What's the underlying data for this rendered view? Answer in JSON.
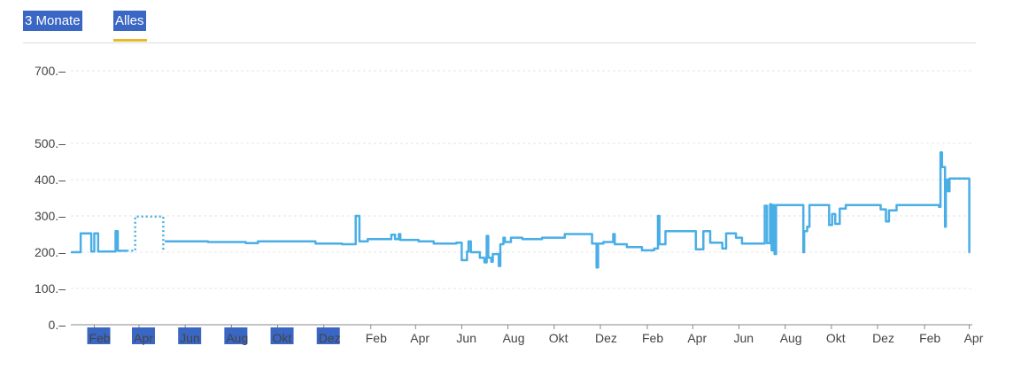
{
  "tabs": {
    "items": [
      {
        "label": "3 Monate",
        "active": false
      },
      {
        "label": "Alles",
        "active": true
      }
    ],
    "accent_color": "#e9b92a",
    "highlight_color": "#3a66c4"
  },
  "chart_data": {
    "type": "line",
    "line_color": "#4aaee6",
    "grid": true,
    "ylim": [
      0,
      700
    ],
    "yticks": [
      0,
      100,
      200,
      300,
      400,
      500,
      700
    ],
    "ytick_labels": [
      "0.–",
      "100.–",
      "200.–",
      "300.–",
      "400.–",
      "500.–",
      "700.–"
    ],
    "xlim": [
      "2022-01-01",
      "2025-04-05"
    ],
    "xticks": [
      {
        "date": "2022-02-01",
        "label": "Feb",
        "highlight": true
      },
      {
        "date": "2022-04-01",
        "label": "Apr",
        "highlight": true
      },
      {
        "date": "2022-06-01",
        "label": "Jun",
        "highlight": true
      },
      {
        "date": "2022-08-01",
        "label": "Aug",
        "highlight": true
      },
      {
        "date": "2022-10-01",
        "label": "Okt",
        "highlight": true
      },
      {
        "date": "2022-12-01",
        "label": "Dez",
        "highlight": true
      },
      {
        "date": "2023-02-01",
        "label": "Feb",
        "highlight": false
      },
      {
        "date": "2023-04-01",
        "label": "Apr",
        "highlight": false
      },
      {
        "date": "2023-06-01",
        "label": "Jun",
        "highlight": false
      },
      {
        "date": "2023-08-01",
        "label": "Aug",
        "highlight": false
      },
      {
        "date": "2023-10-01",
        "label": "Okt",
        "highlight": false
      },
      {
        "date": "2023-12-01",
        "label": "Dez",
        "highlight": false
      },
      {
        "date": "2024-02-01",
        "label": "Feb",
        "highlight": false
      },
      {
        "date": "2024-04-01",
        "label": "Apr",
        "highlight": false
      },
      {
        "date": "2024-06-01",
        "label": "Jun",
        "highlight": false
      },
      {
        "date": "2024-08-01",
        "label": "Aug",
        "highlight": false
      },
      {
        "date": "2024-10-01",
        "label": "Okt",
        "highlight": false
      },
      {
        "date": "2024-12-01",
        "label": "Dez",
        "highlight": false
      },
      {
        "date": "2025-02-01",
        "label": "Feb",
        "highlight": false
      },
      {
        "date": "2025-04-01",
        "label": "Apr",
        "highlight": false
      }
    ],
    "series": [
      {
        "style": "step",
        "points": [
          [
            "2022-01-01",
            200
          ],
          [
            "2022-01-14",
            200
          ],
          [
            "2022-01-14",
            252
          ],
          [
            "2022-01-28",
            252
          ],
          [
            "2022-01-28",
            202
          ],
          [
            "2022-02-01",
            202
          ],
          [
            "2022-02-01",
            252
          ],
          [
            "2022-02-06",
            252
          ],
          [
            "2022-02-06",
            202
          ],
          [
            "2022-03-01",
            202
          ],
          [
            "2022-03-01",
            258
          ],
          [
            "2022-03-04",
            258
          ],
          [
            "2022-03-04",
            204
          ],
          [
            "2022-03-16",
            204
          ]
        ]
      },
      {
        "style": "dotted",
        "points": [
          [
            "2022-03-16",
            204
          ],
          [
            "2022-03-27",
            204
          ],
          [
            "2022-03-27",
            298
          ],
          [
            "2022-05-03",
            298
          ],
          [
            "2022-05-03",
            204
          ],
          [
            "2022-05-05",
            204
          ]
        ]
      },
      {
        "style": "step",
        "points": [
          [
            "2022-05-05",
            230
          ],
          [
            "2022-07-01",
            230
          ],
          [
            "2022-07-01",
            228
          ],
          [
            "2022-08-20",
            228
          ],
          [
            "2022-08-20",
            225
          ],
          [
            "2022-09-05",
            225
          ],
          [
            "2022-09-05",
            230
          ],
          [
            "2022-11-20",
            230
          ],
          [
            "2022-11-20",
            224
          ],
          [
            "2022-12-25",
            224
          ],
          [
            "2022-12-25",
            222
          ],
          [
            "2023-01-12",
            222
          ],
          [
            "2023-01-12",
            300
          ],
          [
            "2023-01-17",
            300
          ],
          [
            "2023-01-17",
            230
          ],
          [
            "2023-01-28",
            230
          ],
          [
            "2023-01-28",
            236
          ],
          [
            "2023-02-28",
            236
          ],
          [
            "2023-02-28",
            248
          ],
          [
            "2023-03-05",
            248
          ],
          [
            "2023-03-05",
            236
          ],
          [
            "2023-03-10",
            236
          ],
          [
            "2023-03-10",
            250
          ],
          [
            "2023-03-12",
            250
          ],
          [
            "2023-03-12",
            234
          ],
          [
            "2023-04-05",
            234
          ],
          [
            "2023-04-05",
            230
          ],
          [
            "2023-04-25",
            230
          ],
          [
            "2023-04-25",
            224
          ],
          [
            "2023-05-25",
            224
          ],
          [
            "2023-05-25",
            226
          ],
          [
            "2023-06-01",
            226
          ],
          [
            "2023-06-01",
            178
          ],
          [
            "2023-06-08",
            178
          ],
          [
            "2023-06-08",
            202
          ],
          [
            "2023-06-10",
            202
          ],
          [
            "2023-06-10",
            230
          ],
          [
            "2023-06-13",
            230
          ],
          [
            "2023-06-13",
            200
          ],
          [
            "2023-06-25",
            200
          ],
          [
            "2023-06-25",
            185
          ],
          [
            "2023-07-01",
            185
          ],
          [
            "2023-07-01",
            172
          ],
          [
            "2023-07-04",
            172
          ],
          [
            "2023-07-04",
            245
          ],
          [
            "2023-07-06",
            245
          ],
          [
            "2023-07-06",
            185
          ],
          [
            "2023-07-10",
            185
          ],
          [
            "2023-07-10",
            174
          ],
          [
            "2023-07-12",
            174
          ],
          [
            "2023-07-12",
            195
          ],
          [
            "2023-07-20",
            195
          ],
          [
            "2023-07-20",
            162
          ],
          [
            "2023-07-22",
            162
          ],
          [
            "2023-07-22",
            222
          ],
          [
            "2023-07-26",
            222
          ],
          [
            "2023-07-26",
            240
          ],
          [
            "2023-07-28",
            240
          ],
          [
            "2023-07-28",
            228
          ],
          [
            "2023-08-05",
            228
          ],
          [
            "2023-08-05",
            240
          ],
          [
            "2023-08-20",
            240
          ],
          [
            "2023-08-20",
            236
          ],
          [
            "2023-09-15",
            236
          ],
          [
            "2023-09-15",
            240
          ],
          [
            "2023-10-15",
            240
          ],
          [
            "2023-10-15",
            250
          ],
          [
            "2023-11-20",
            250
          ],
          [
            "2023-11-20",
            224
          ],
          [
            "2023-11-26",
            224
          ],
          [
            "2023-11-26",
            158
          ],
          [
            "2023-11-28",
            158
          ],
          [
            "2023-11-28",
            224
          ],
          [
            "2023-12-05",
            224
          ],
          [
            "2023-12-05",
            228
          ],
          [
            "2023-12-18",
            228
          ],
          [
            "2023-12-18",
            250
          ],
          [
            "2023-12-20",
            250
          ],
          [
            "2023-12-20",
            222
          ],
          [
            "2024-01-05",
            222
          ],
          [
            "2024-01-05",
            214
          ],
          [
            "2024-01-25",
            214
          ],
          [
            "2024-01-25",
            205
          ],
          [
            "2024-02-10",
            205
          ],
          [
            "2024-02-10",
            210
          ],
          [
            "2024-02-15",
            210
          ],
          [
            "2024-02-15",
            300
          ],
          [
            "2024-02-17",
            300
          ],
          [
            "2024-02-17",
            222
          ],
          [
            "2024-02-25",
            222
          ],
          [
            "2024-02-25",
            258
          ],
          [
            "2024-04-05",
            258
          ],
          [
            "2024-04-05",
            208
          ],
          [
            "2024-04-15",
            208
          ],
          [
            "2024-04-15",
            258
          ],
          [
            "2024-04-24",
            258
          ],
          [
            "2024-04-24",
            226
          ],
          [
            "2024-05-10",
            226
          ],
          [
            "2024-05-10",
            210
          ],
          [
            "2024-05-15",
            210
          ],
          [
            "2024-05-15",
            252
          ],
          [
            "2024-05-28",
            252
          ],
          [
            "2024-05-28",
            240
          ],
          [
            "2024-06-05",
            240
          ],
          [
            "2024-06-05",
            224
          ],
          [
            "2024-07-05",
            224
          ],
          [
            "2024-07-05",
            328
          ],
          [
            "2024-07-08",
            328
          ],
          [
            "2024-07-08",
            225
          ],
          [
            "2024-07-12",
            225
          ],
          [
            "2024-07-12",
            332
          ],
          [
            "2024-07-14",
            332
          ],
          [
            "2024-07-14",
            205
          ],
          [
            "2024-07-16",
            205
          ],
          [
            "2024-07-16",
            330
          ],
          [
            "2024-07-18",
            330
          ],
          [
            "2024-07-18",
            195
          ],
          [
            "2024-07-20",
            195
          ],
          [
            "2024-07-20",
            330
          ],
          [
            "2024-08-25",
            330
          ],
          [
            "2024-08-25",
            200
          ],
          [
            "2024-08-26",
            200
          ],
          [
            "2024-08-26",
            258
          ],
          [
            "2024-08-30",
            258
          ],
          [
            "2024-08-30",
            270
          ],
          [
            "2024-09-02",
            270
          ],
          [
            "2024-09-02",
            330
          ],
          [
            "2024-09-28",
            330
          ],
          [
            "2024-09-28",
            275
          ],
          [
            "2024-10-02",
            275
          ],
          [
            "2024-10-02",
            305
          ],
          [
            "2024-10-06",
            305
          ],
          [
            "2024-10-06",
            278
          ],
          [
            "2024-10-12",
            278
          ],
          [
            "2024-10-12",
            320
          ],
          [
            "2024-10-20",
            320
          ],
          [
            "2024-10-20",
            330
          ],
          [
            "2024-12-05",
            330
          ],
          [
            "2024-12-05",
            318
          ],
          [
            "2024-12-12",
            318
          ],
          [
            "2024-12-12",
            285
          ],
          [
            "2024-12-16",
            285
          ],
          [
            "2024-12-16",
            315
          ],
          [
            "2024-12-26",
            315
          ],
          [
            "2024-12-26",
            330
          ],
          [
            "2025-02-20",
            330
          ],
          [
            "2025-02-20",
            325
          ],
          [
            "2025-02-22",
            325
          ],
          [
            "2025-02-22",
            475
          ],
          [
            "2025-02-24",
            475
          ],
          [
            "2025-02-24",
            435
          ],
          [
            "2025-02-28",
            435
          ],
          [
            "2025-02-28",
            270
          ],
          [
            "2025-03-01",
            270
          ],
          [
            "2025-03-01",
            400
          ],
          [
            "2025-03-04",
            400
          ],
          [
            "2025-03-04",
            368
          ],
          [
            "2025-03-06",
            368
          ],
          [
            "2025-03-06",
            403
          ],
          [
            "2025-04-01",
            403
          ],
          [
            "2025-04-01",
            200
          ],
          [
            "2025-04-02",
            200
          ]
        ]
      }
    ]
  }
}
